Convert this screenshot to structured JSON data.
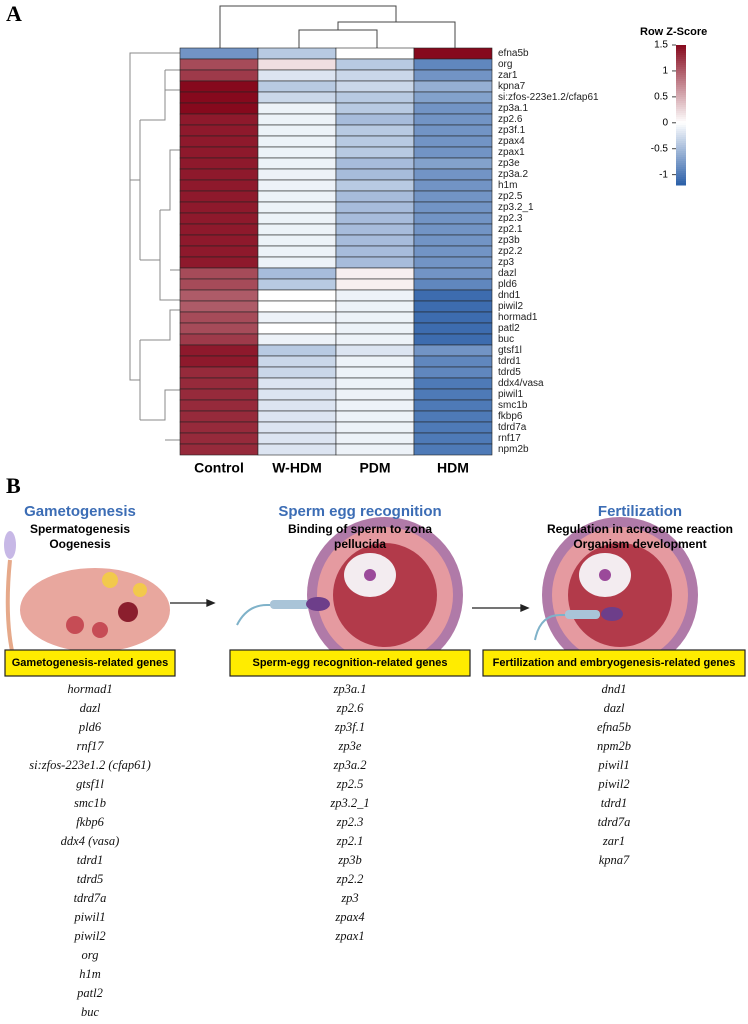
{
  "chart_data": {
    "type": "heatmap",
    "panel_label": "A",
    "colorbar_title": "Row Z-Score",
    "columns": [
      "Control",
      "W-HDM",
      "PDM",
      "HDM"
    ],
    "rows": [
      "efna5b",
      "org",
      "zar1",
      "kpna7",
      "si:zfos-223e1.2/cfap61",
      "zp3a.1",
      "zp2.6",
      "zp3f.1",
      "zpax4",
      "zpax1",
      "zp3e",
      "zp3a.2",
      "h1m",
      "zp2.5",
      "zp3.2_1",
      "zp2.3",
      "zp2.1",
      "zp3b",
      "zp2.2",
      "zp3",
      "dazl",
      "pld6",
      "dnd1",
      "piwil2",
      "hormad1",
      "patl2",
      "buc",
      "gtsf1l",
      "tdrd1",
      "tdrd5",
      "ddx4/vasa",
      "piwil1",
      "smc1b",
      "fkbp6",
      "tdrd7a",
      "rnf17",
      "npm2b"
    ],
    "values": [
      [
        -0.8,
        -0.4,
        0,
        1.5
      ],
      [
        1.1,
        0.2,
        -0.4,
        -0.9
      ],
      [
        1.2,
        -0.2,
        -0.3,
        -0.8
      ],
      [
        1.5,
        -0.4,
        -0.3,
        -0.6
      ],
      [
        1.5,
        -0.3,
        -0.4,
        -0.7
      ],
      [
        1.5,
        -0.1,
        -0.4,
        -0.8
      ],
      [
        1.4,
        -0.1,
        -0.5,
        -0.8
      ],
      [
        1.4,
        -0.1,
        -0.4,
        -0.8
      ],
      [
        1.4,
        -0.1,
        -0.4,
        -0.8
      ],
      [
        1.4,
        -0.1,
        -0.4,
        -0.8
      ],
      [
        1.4,
        -0.1,
        -0.5,
        -0.7
      ],
      [
        1.4,
        -0.1,
        -0.5,
        -0.8
      ],
      [
        1.4,
        -0.1,
        -0.4,
        -0.8
      ],
      [
        1.4,
        -0.1,
        -0.5,
        -0.8
      ],
      [
        1.4,
        -0.1,
        -0.5,
        -0.8
      ],
      [
        1.4,
        -0.1,
        -0.5,
        -0.8
      ],
      [
        1.4,
        -0.1,
        -0.5,
        -0.8
      ],
      [
        1.4,
        -0.1,
        -0.5,
        -0.8
      ],
      [
        1.4,
        -0.1,
        -0.5,
        -0.8
      ],
      [
        1.4,
        -0.1,
        -0.5,
        -0.8
      ],
      [
        1.1,
        -0.5,
        0.1,
        -0.8
      ],
      [
        1.1,
        -0.4,
        0.1,
        -0.9
      ],
      [
        1.0,
        0,
        -0.1,
        -1.1
      ],
      [
        1.0,
        0,
        -0.1,
        -1.1
      ],
      [
        1.1,
        -0.1,
        -0.1,
        -1.1
      ],
      [
        1.1,
        0,
        -0.1,
        -1.1
      ],
      [
        1.2,
        -0.1,
        -0.1,
        -1.1
      ],
      [
        1.4,
        -0.4,
        -0.2,
        -0.8
      ],
      [
        1.4,
        -0.3,
        -0.1,
        -0.9
      ],
      [
        1.3,
        -0.3,
        -0.1,
        -0.9
      ],
      [
        1.3,
        -0.2,
        -0.1,
        -1.0
      ],
      [
        1.3,
        -0.2,
        -0.1,
        -1.0
      ],
      [
        1.3,
        -0.2,
        -0.1,
        -1.0
      ],
      [
        1.3,
        -0.2,
        -0.1,
        -1.0
      ],
      [
        1.3,
        -0.2,
        -0.1,
        -1.0
      ],
      [
        1.3,
        -0.2,
        -0.1,
        -1.0
      ],
      [
        1.3,
        -0.2,
        -0.1,
        -1.0
      ]
    ],
    "clim": [
      -1.2,
      1.5
    ],
    "cticks": [
      1.5,
      1,
      0.5,
      0,
      -0.5,
      -1
    ],
    "colors": {
      "low": "#2b5fa8",
      "mid": "#ffffff",
      "high": "#86091d"
    }
  },
  "panel_b": {
    "panel_label": "B",
    "stages": [
      {
        "title": "Gametogenesis",
        "subtitle": [
          "Spermatogenesis",
          "Oogenesis"
        ],
        "box": "Gametogenesis-related genes",
        "genes": [
          "hormad1",
          "dazl",
          "pld6",
          "rnf17",
          "si:zfos-223e1.2 (cfap61)",
          "gtsf1l",
          "smc1b",
          "fkbp6",
          "ddx4 (vasa)",
          "tdrd1",
          "tdrd5",
          "tdrd7a",
          "piwil1",
          "piwil2",
          "org",
          "h1m",
          "patl2",
          "buc"
        ]
      },
      {
        "title": "Sperm egg recognition",
        "subtitle": [
          "Binding of sperm to zona",
          "pellucida"
        ],
        "box": "Sperm-egg recognition-related genes",
        "genes": [
          "zp3a.1",
          "zp2.6",
          "zp3f.1",
          "zp3e",
          "zp3a.2",
          "zp2.5",
          "zp3.2_1",
          "zp2.3",
          "zp2.1",
          "zp3b",
          "zp2.2",
          "zp3",
          "zpax4",
          "zpax1"
        ]
      },
      {
        "title": "Fertilization",
        "subtitle": [
          "Regulation in acrosome reaction",
          "Organism development"
        ],
        "box": "Fertilization and embryogenesis-related genes",
        "genes": [
          "dnd1",
          "dazl",
          "efna5b",
          "npm2b",
          "piwil1",
          "piwil2",
          "tdrd1",
          "tdrd7a",
          "zar1",
          "kpna7"
        ]
      }
    ]
  }
}
